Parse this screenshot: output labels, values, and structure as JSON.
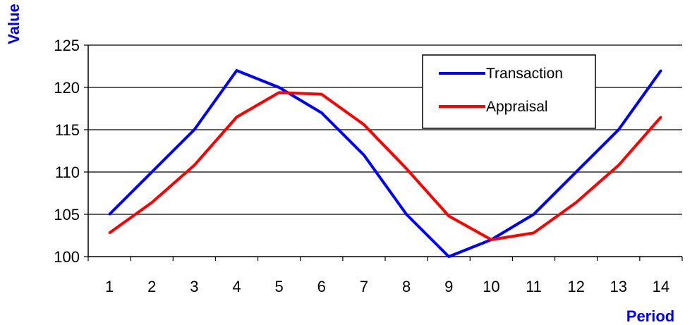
{
  "chart_data": {
    "type": "line",
    "title": "",
    "xlabel": "Period",
    "ylabel": "Value",
    "x": [
      1,
      2,
      3,
      4,
      5,
      6,
      7,
      8,
      9,
      10,
      11,
      12,
      13,
      14
    ],
    "x_tick_labels": [
      "1",
      "2",
      "3",
      "4",
      "5",
      "6",
      "7",
      "8",
      "9",
      "10",
      "11",
      "12",
      "13",
      "14"
    ],
    "ylim": [
      100,
      125
    ],
    "y_ticks": [
      100,
      105,
      110,
      115,
      120,
      125
    ],
    "y_tick_labels": [
      "100",
      "105",
      "110",
      "115",
      "120",
      "125"
    ],
    "grid": "horizontal",
    "legend_position": "top-right",
    "series": [
      {
        "name": "Transaction",
        "color": "#0000ff",
        "values": [
          105,
          110,
          115,
          122,
          120,
          117,
          112,
          105,
          100,
          102,
          105,
          110,
          115,
          122
        ]
      },
      {
        "name": "Appraisal",
        "color": "#ff0000",
        "values": [
          102.8,
          106.4,
          110.8,
          116.5,
          119.4,
          119.2,
          115.6,
          110.4,
          104.8,
          102,
          102.8,
          106.4,
          110.8,
          116.5
        ]
      }
    ],
    "axis_title_color": "#0000ff"
  }
}
